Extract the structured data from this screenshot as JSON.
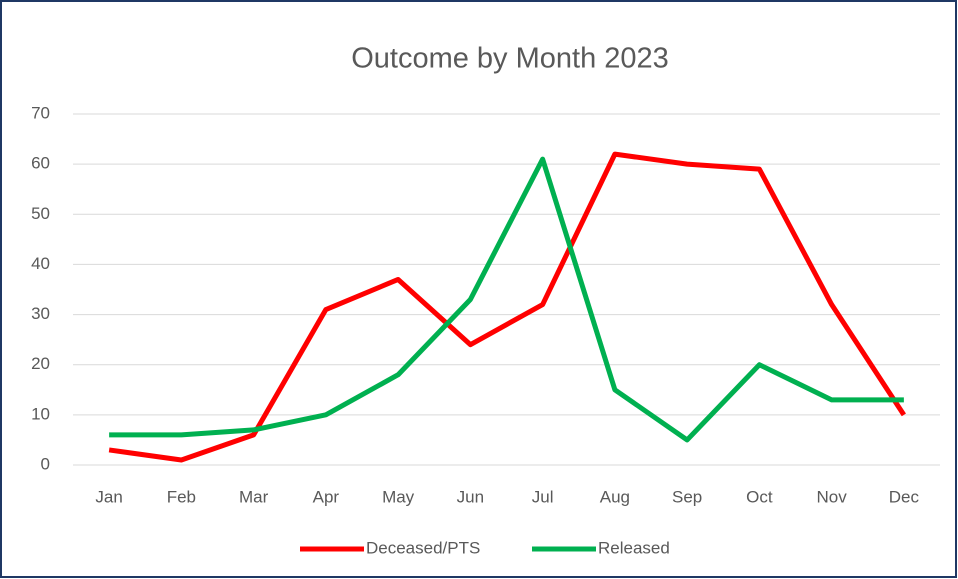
{
  "chart_data": {
    "type": "line",
    "title": "Outcome by Month 2023",
    "categories": [
      "Jan",
      "Feb",
      "Mar",
      "Apr",
      "May",
      "Jun",
      "Jul",
      "Aug",
      "Sep",
      "Oct",
      "Nov",
      "Dec"
    ],
    "series": [
      {
        "name": "Deceased/PTS",
        "color": "#ff0000",
        "values": [
          3,
          1,
          6,
          31,
          37,
          24,
          32,
          62,
          60,
          59,
          32,
          10
        ]
      },
      {
        "name": "Released",
        "color": "#00b050",
        "values": [
          6,
          6,
          7,
          10,
          18,
          33,
          61,
          15,
          5,
          20,
          13,
          13
        ]
      }
    ],
    "ylim": [
      0,
      70
    ],
    "yticks": [
      0,
      10,
      20,
      30,
      40,
      50,
      60,
      70
    ],
    "grid": true,
    "legend": "bottom"
  }
}
